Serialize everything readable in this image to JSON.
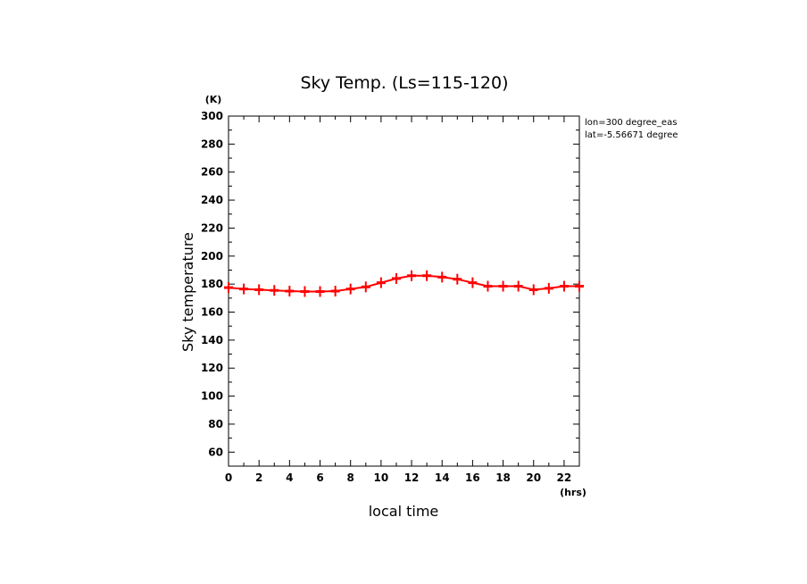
{
  "chart_data": {
    "type": "line",
    "title": "Sky Temp. (Ls=115-120)",
    "xlabel": "local time",
    "ylabel": "Sky temperature",
    "x_unit": "(hrs)",
    "y_unit": "(K)",
    "xlim": [
      0,
      23
    ],
    "ylim": [
      50,
      300
    ],
    "x_ticks": [
      0,
      2,
      4,
      6,
      8,
      10,
      12,
      14,
      16,
      18,
      20,
      22
    ],
    "y_ticks": [
      60,
      80,
      100,
      120,
      140,
      160,
      180,
      200,
      220,
      240,
      260,
      280,
      300
    ],
    "grid": false,
    "annotations": [
      "lon=300 degree_eas",
      "lat=-5.56671 degree"
    ],
    "series": [
      {
        "color": "#ff0000",
        "marker": "plus",
        "x": [
          0,
          1,
          2,
          3,
          4,
          5,
          6,
          7,
          8,
          9,
          10,
          11,
          12,
          13,
          14,
          15,
          16,
          17,
          18,
          19,
          20,
          21,
          22,
          23
        ],
        "y": [
          177.5,
          176.5,
          176,
          175.5,
          175,
          174.7,
          174.7,
          175,
          176.5,
          178,
          181,
          184,
          186,
          186,
          185,
          183.5,
          181,
          178.5,
          178.5,
          178.5,
          176,
          177,
          178.5,
          178.5
        ]
      }
    ]
  }
}
